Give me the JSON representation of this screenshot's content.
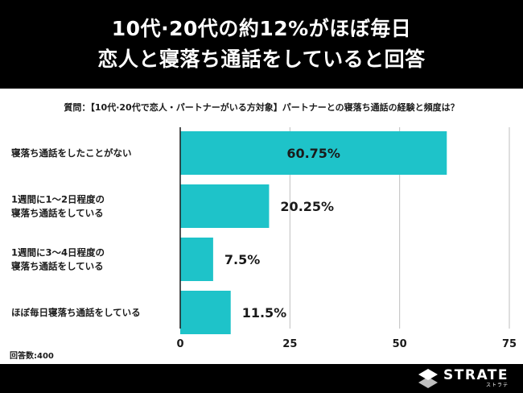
{
  "header": {
    "title_line1": "10代·20代の約12%がほぼ毎日",
    "title_line2": "恋人と寝落ち通話をしていると回答"
  },
  "question": "質問：【10代·20代で恋人・パートナーがいる方対象】パートナーとの寝落ち通話の経験と頻度は？",
  "respondents": "回答数:400",
  "brand": {
    "name": "STRATE",
    "sub": "ストラテ"
  },
  "colors": {
    "bar": "#1ec3c9",
    "header_bg": "#000000",
    "grid": "#bfbfbf"
  },
  "chart_data": {
    "type": "bar",
    "orientation": "horizontal",
    "categories": [
      [
        "寝落ち通話をしたことがない"
      ],
      [
        "1週間に1〜2日程度の",
        "寝落ち通話をしている"
      ],
      [
        "1週間に3〜4日程度の",
        "寝落ち通話をしている"
      ],
      [
        "ほぼ毎日寝落ち通話をしている"
      ]
    ],
    "values": [
      60.75,
      20.25,
      7.5,
      11.5
    ],
    "value_labels": [
      "60.75%",
      "20.25%",
      "7.5%",
      "11.5%"
    ],
    "xlim": [
      0,
      75
    ],
    "xticks": [
      0,
      25,
      50,
      75
    ],
    "grid": true
  }
}
